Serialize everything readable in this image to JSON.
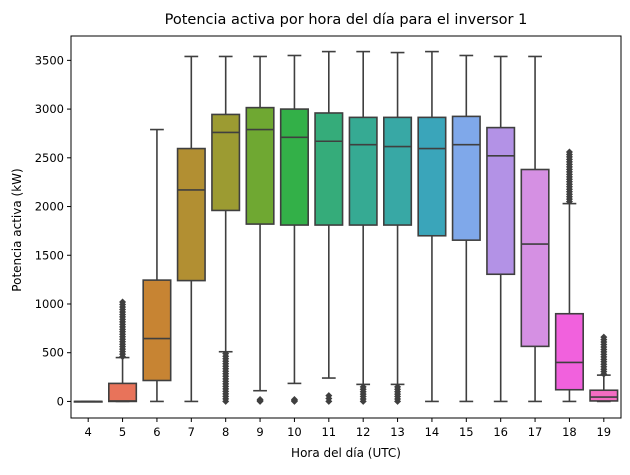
{
  "chart_data": {
    "type": "box",
    "title": "Potencia activa por hora del día para el inversor 1",
    "xlabel": "Hora del día (UTC)",
    "ylabel": "Potencia activa (kW)",
    "ylim": [
      -170,
      3750
    ],
    "yticks": [
      0,
      500,
      1000,
      1500,
      2000,
      2500,
      3000,
      3500
    ],
    "grid": false,
    "legend": "none",
    "categories": [
      "4",
      "5",
      "6",
      "7",
      "8",
      "9",
      "10",
      "11",
      "12",
      "13",
      "14",
      "15",
      "16",
      "17",
      "18",
      "19"
    ],
    "boxes": [
      {
        "hour": "4",
        "color": "#f77189",
        "whisker_low": 0,
        "q1": 0,
        "median": 0,
        "q3": 0,
        "whisker_high": 0,
        "outlier_range": null
      },
      {
        "hour": "5",
        "color": "#e8735a",
        "whisker_low": 0,
        "q1": 0,
        "median": 5,
        "q3": 185,
        "whisker_high": 450,
        "outlier_range": [
          460,
          1020
        ]
      },
      {
        "hour": "6",
        "color": "#c78433",
        "whisker_low": 0,
        "q1": 215,
        "median": 645,
        "q3": 1245,
        "whisker_high": 2790,
        "outlier_range": null
      },
      {
        "hour": "7",
        "color": "#b28f32",
        "whisker_low": 0,
        "q1": 1240,
        "median": 2170,
        "q3": 2595,
        "whisker_high": 3540,
        "outlier_range": null
      },
      {
        "hour": "8",
        "color": "#9c9b32",
        "whisker_low": 510,
        "q1": 1960,
        "median": 2760,
        "q3": 2945,
        "whisker_high": 3540,
        "outlier_range": [
          0,
          490
        ]
      },
      {
        "hour": "9",
        "color": "#6fa832",
        "whisker_low": 110,
        "q1": 1820,
        "median": 2790,
        "q3": 3015,
        "whisker_high": 3540,
        "outlier_range": [
          0,
          20
        ]
      },
      {
        "hour": "10",
        "color": "#33b048",
        "whisker_low": 185,
        "q1": 1810,
        "median": 2710,
        "q3": 3000,
        "whisker_high": 3550,
        "outlier_range": [
          0,
          20
        ]
      },
      {
        "hour": "11",
        "color": "#35ac7a",
        "whisker_low": 240,
        "q1": 1810,
        "median": 2670,
        "q3": 2960,
        "whisker_high": 3590,
        "outlier_range": [
          0,
          60
        ]
      },
      {
        "hour": "12",
        "color": "#36aa93",
        "whisker_low": 175,
        "q1": 1810,
        "median": 2635,
        "q3": 2915,
        "whisker_high": 3590,
        "outlier_range": [
          0,
          150
        ]
      },
      {
        "hour": "13",
        "color": "#38a8a5",
        "whisker_low": 175,
        "q1": 1810,
        "median": 2615,
        "q3": 2915,
        "whisker_high": 3580,
        "outlier_range": [
          0,
          150
        ]
      },
      {
        "hour": "14",
        "color": "#3aa5ba",
        "whisker_low": 0,
        "q1": 1700,
        "median": 2595,
        "q3": 2915,
        "whisker_high": 3590,
        "outlier_range": null
      },
      {
        "hour": "15",
        "color": "#7fa8ea",
        "whisker_low": 0,
        "q1": 1655,
        "median": 2635,
        "q3": 2925,
        "whisker_high": 3550,
        "outlier_range": null
      },
      {
        "hour": "16",
        "color": "#b392e6",
        "whisker_low": 0,
        "q1": 1305,
        "median": 2520,
        "q3": 2810,
        "whisker_high": 3540,
        "outlier_range": null
      },
      {
        "hour": "17",
        "color": "#d590e3",
        "whisker_low": 0,
        "q1": 565,
        "median": 1615,
        "q3": 2380,
        "whisker_high": 3540,
        "outlier_range": null
      },
      {
        "hour": "18",
        "color": "#f161dd",
        "whisker_low": 0,
        "q1": 120,
        "median": 400,
        "q3": 900,
        "whisker_high": 2030,
        "outlier_range": [
          2050,
          2560
        ]
      },
      {
        "hour": "19",
        "color": "#f36cc2",
        "whisker_low": 0,
        "q1": 5,
        "median": 45,
        "q3": 115,
        "whisker_high": 270,
        "outlier_range": [
          280,
          660
        ]
      }
    ]
  }
}
